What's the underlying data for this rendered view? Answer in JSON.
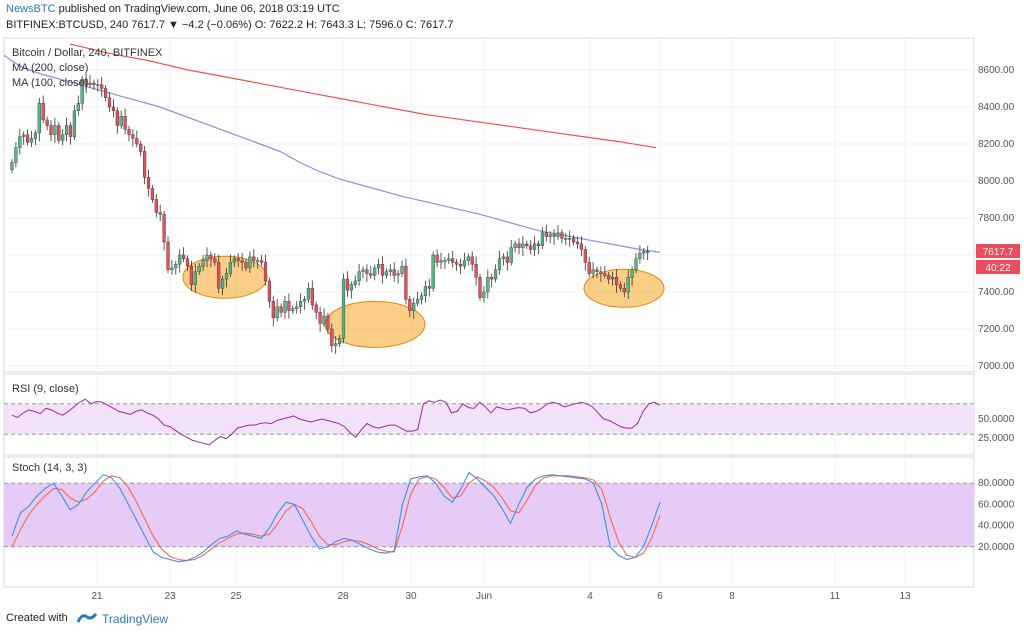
{
  "header": {
    "publisher": "NewsBTC",
    "published_text": " published on TradingView.com, June 06, 2018 03:19 UTC",
    "symbol_line": "BITFINEX:BTCUSD, 240  7617.7  ▼ −4.2 (−0.06%)  O: 7622.2  H: 7643.3  L: 7596.0  C: 7617.7"
  },
  "legend": {
    "title": "Bitcoin / Dollar, 240, BITFINEX",
    "ma200": "MA (200, close)",
    "ma100": "MA (100, close)",
    "rsi": "RSI (9, close)",
    "stoch": "Stoch (14, 3, 3)"
  },
  "price_badge": {
    "price": "7617.7",
    "countdown": "40:22"
  },
  "footer": {
    "created_with": "Created with",
    "brand": "TradingView"
  },
  "colors": {
    "up": "#53b987",
    "down": "#eb4d5c",
    "ma200": "#f05350",
    "ma100": "#8c8ce6",
    "rsi": "#9c27b0",
    "stoch_k": "#3f8fe6",
    "stoch_d": "#f26b4f",
    "highlight": "#f5a623",
    "rsi_band": "#f3e3f8",
    "stoch_band": "#e6cbf7"
  },
  "chart_data": [
    {
      "type": "candlestick",
      "title": "Bitcoin / Dollar, 240, BITFINEX",
      "x_ticks": [
        "21",
        "23",
        "25",
        "28",
        "30",
        "Jun",
        "4",
        "6",
        "8",
        "11",
        "13"
      ],
      "y_ticks": [
        "8600.00",
        "8400.00",
        "8200.00",
        "8000.00",
        "7800.00",
        "7600.00",
        "7400.00",
        "7200.00",
        "7000.00"
      ],
      "ylim": [
        6980,
        8720
      ],
      "x_unit": "4-hour bars",
      "close": [
        8100,
        8180,
        8240,
        8250,
        8210,
        8230,
        8260,
        8420,
        8330,
        8300,
        8250,
        8300,
        8220,
        8250,
        8300,
        8240,
        8380,
        8420,
        8550,
        8520,
        8530,
        8520,
        8520,
        8500,
        8450,
        8400,
        8380,
        8300,
        8350,
        8280,
        8250,
        8230,
        8200,
        8160,
        8020,
        7960,
        7900,
        7830,
        7820,
        7670,
        7520,
        7530,
        7550,
        7600,
        7580,
        7540,
        7440,
        7510,
        7540,
        7570,
        7600,
        7580,
        7560,
        7420,
        7470,
        7500,
        7560,
        7580,
        7570,
        7560,
        7530,
        7590,
        7570,
        7570,
        7560,
        7460,
        7350,
        7260,
        7320,
        7290,
        7350,
        7300,
        7310,
        7320,
        7350,
        7360,
        7420,
        7330,
        7290,
        7230,
        7270,
        7200,
        7110,
        7120,
        7150,
        7470,
        7410,
        7440,
        7460,
        7510,
        7520,
        7500,
        7490,
        7530,
        7550,
        7490,
        7510,
        7520,
        7490,
        7500,
        7540,
        7360,
        7300,
        7340,
        7360,
        7380,
        7430,
        7420,
        7600,
        7560,
        7570,
        7570,
        7580,
        7560,
        7550,
        7540,
        7570,
        7590,
        7550,
        7480,
        7370,
        7400,
        7480,
        7470,
        7520,
        7580,
        7590,
        7560,
        7640,
        7660,
        7640,
        7660,
        7650,
        7630,
        7660,
        7650,
        7720,
        7700,
        7710,
        7700,
        7720,
        7690,
        7690,
        7690,
        7670,
        7660,
        7630,
        7560,
        7500,
        7520,
        7510,
        7500,
        7490,
        7470,
        7480,
        7440,
        7420,
        7400,
        7480,
        7520,
        7580,
        7610,
        7620,
        7618
      ],
      "series": [
        {
          "name": "MA (200, close)",
          "points": [
            [
              70,
              8740
            ],
            [
              109,
              8690
            ],
            [
              149,
              8650
            ],
            [
              188,
              8600
            ],
            [
              228,
              8560
            ],
            [
              267,
              8520
            ],
            [
              306,
              8480
            ],
            [
              346,
              8440
            ],
            [
              385,
              8400
            ],
            [
              425,
              8360
            ],
            [
              464,
              8330
            ],
            [
              504,
              8300
            ],
            [
              543,
              8270
            ],
            [
              583,
              8240
            ],
            [
              622,
              8210
            ],
            [
              656,
              8180
            ]
          ]
        },
        {
          "name": "MA (100, close)",
          "points": [
            [
              4,
              8680
            ],
            [
              20,
              8620
            ],
            [
              40,
              8580
            ],
            [
              60,
              8550
            ],
            [
              80,
              8520
            ],
            [
              100,
              8490
            ],
            [
              120,
              8460
            ],
            [
              140,
              8430
            ],
            [
              160,
              8400
            ],
            [
              180,
              8360
            ],
            [
              200,
              8320
            ],
            [
              220,
              8280
            ],
            [
              240,
              8240
            ],
            [
              260,
              8200
            ],
            [
              280,
              8160
            ],
            [
              300,
              8100
            ],
            [
              320,
              8050
            ],
            [
              340,
              8010
            ],
            [
              360,
              7980
            ],
            [
              380,
              7950
            ],
            [
              400,
              7920
            ],
            [
              420,
              7895
            ],
            [
              440,
              7870
            ],
            [
              460,
              7845
            ],
            [
              480,
              7820
            ],
            [
              500,
              7790
            ],
            [
              520,
              7760
            ],
            [
              540,
              7730
            ],
            [
              560,
              7710
            ],
            [
              580,
              7690
            ],
            [
              600,
              7670
            ],
            [
              620,
              7650
            ],
            [
              640,
              7630
            ],
            [
              660,
              7615
            ]
          ]
        }
      ]
    },
    {
      "type": "line",
      "title": "RSI (9, close)",
      "y_ticks": [
        "50.0000",
        "25.0000"
      ],
      "ylim": [
        0,
        100
      ],
      "bands": [
        30,
        70
      ],
      "series": [
        {
          "name": "RSI (9, close)",
          "values": [
            55,
            52,
            58,
            62,
            60,
            57,
            64,
            62,
            58,
            55,
            60,
            66,
            72,
            76,
            70,
            73,
            72,
            68,
            64,
            60,
            58,
            56,
            60,
            62,
            58,
            55,
            50,
            42,
            40,
            35,
            30,
            26,
            22,
            20,
            18,
            16,
            22,
            27,
            24,
            30,
            38,
            40,
            42,
            42,
            44,
            45,
            44,
            48,
            50,
            52,
            54,
            50,
            48,
            46,
            48,
            50,
            48,
            46,
            44,
            40,
            32,
            26,
            36,
            44,
            40,
            38,
            40,
            42,
            42,
            38,
            34,
            34,
            36,
            70,
            74,
            72,
            75,
            72,
            58,
            60,
            70,
            65,
            64,
            72,
            66,
            58,
            66,
            64,
            62,
            64,
            65,
            64,
            58,
            60,
            64,
            70,
            72,
            70,
            66,
            68,
            70,
            72,
            70,
            66,
            58,
            50,
            48,
            44,
            40,
            38,
            38,
            44,
            60,
            70,
            72,
            68
          ]
        }
      ]
    },
    {
      "type": "line",
      "title": "Stoch (14, 3, 3)",
      "y_ticks": [
        "80.0000",
        "60.0000",
        "40.0000",
        "20.0000"
      ],
      "ylim": [
        0,
        100
      ],
      "bands": [
        20,
        80
      ],
      "series": [
        {
          "name": "%K",
          "values": [
            30,
            52,
            58,
            68,
            75,
            80,
            68,
            55,
            60,
            72,
            80,
            88,
            85,
            75,
            60,
            45,
            30,
            15,
            10,
            8,
            6,
            7,
            10,
            15,
            22,
            28,
            30,
            35,
            32,
            30,
            28,
            38,
            52,
            62,
            60,
            45,
            30,
            18,
            20,
            25,
            28,
            26,
            22,
            18,
            15,
            14,
            16,
            60,
            84,
            86,
            87,
            80,
            68,
            62,
            74,
            90,
            84,
            76,
            68,
            56,
            42,
            60,
            76,
            84,
            87,
            88,
            87,
            86,
            85,
            84,
            80,
            60,
            20,
            12,
            8,
            10,
            20,
            40,
            62
          ]
        },
        {
          "name": "%D",
          "values": [
            20,
            36,
            50,
            60,
            68,
            75,
            74,
            66,
            62,
            65,
            72,
            82,
            87,
            85,
            76,
            62,
            46,
            30,
            18,
            11,
            8,
            7,
            8,
            12,
            18,
            24,
            28,
            32,
            33,
            32,
            30,
            32,
            42,
            54,
            60,
            56,
            44,
            30,
            22,
            22,
            25,
            26,
            25,
            22,
            18,
            16,
            15,
            40,
            70,
            84,
            86,
            84,
            76,
            66,
            68,
            80,
            86,
            82,
            76,
            66,
            54,
            52,
            64,
            78,
            85,
            87,
            87,
            87,
            86,
            85,
            83,
            74,
            48,
            25,
            12,
            10,
            14,
            28,
            50
          ]
        }
      ]
    }
  ]
}
